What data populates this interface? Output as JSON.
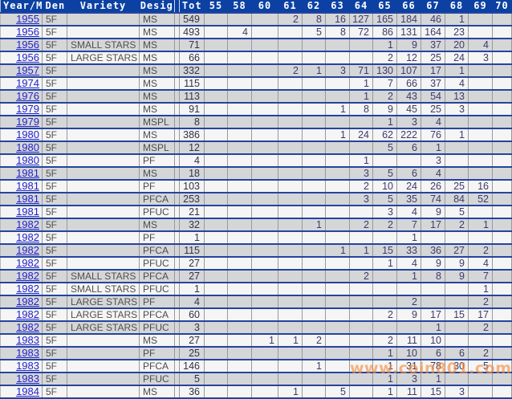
{
  "page": {
    "watermark": "www.coin801.com"
  },
  "colors": {
    "header_bg": "#0c41a3",
    "row_separator": "#24459e",
    "grid_line": "#999999",
    "row_odd_bg": "#d5d6d8",
    "row_even_bg": "#f5f5f5",
    "year_link": "#2323cc",
    "grade_value": "#3f3c66",
    "watermark_color": "#f28938"
  },
  "table": {
    "columns": [
      "Year/M",
      "Den",
      "Variety",
      "Desig",
      "Tot",
      "55",
      "58",
      "60",
      "61",
      "62",
      "63",
      "64",
      "65",
      "66",
      "67",
      "68",
      "69",
      "70"
    ],
    "grade_columns": [
      "55",
      "58",
      "60",
      "61",
      "62",
      "63",
      "64",
      "65",
      "66",
      "67",
      "68",
      "69",
      "70"
    ],
    "rows": [
      {
        "year": "1955",
        "den": "5F",
        "variety": "",
        "desig": "MS",
        "tot": "549",
        "grades": {
          "61": "2",
          "62": "8",
          "63": "16",
          "64": "127",
          "65": "165",
          "66": "184",
          "67": "46",
          "68": "1"
        }
      },
      {
        "year": "1956",
        "den": "5F",
        "variety": "",
        "desig": "MS",
        "tot": "493",
        "grades": {
          "58": "4",
          "62": "5",
          "63": "8",
          "64": "72",
          "65": "86",
          "66": "131",
          "67": "164",
          "68": "23"
        }
      },
      {
        "year": "1956",
        "den": "5F",
        "variety": "SMALL STARS",
        "desig": "MS",
        "tot": "71",
        "grades": {
          "65": "1",
          "66": "9",
          "67": "37",
          "68": "20",
          "69": "4"
        }
      },
      {
        "year": "1956",
        "den": "5F",
        "variety": "LARGE STARS",
        "desig": "MS",
        "tot": "66",
        "grades": {
          "65": "2",
          "66": "12",
          "67": "25",
          "68": "24",
          "69": "3"
        }
      },
      {
        "year": "1957",
        "den": "5F",
        "variety": "",
        "desig": "MS",
        "tot": "332",
        "grades": {
          "61": "2",
          "62": "1",
          "63": "3",
          "64": "71",
          "65": "130",
          "66": "107",
          "67": "17",
          "68": "1"
        }
      },
      {
        "year": "1974",
        "den": "5F",
        "variety": "",
        "desig": "MS",
        "tot": "115",
        "grades": {
          "64": "1",
          "65": "7",
          "66": "66",
          "67": "37",
          "68": "4"
        }
      },
      {
        "year": "1976",
        "den": "5F",
        "variety": "",
        "desig": "MS",
        "tot": "113",
        "grades": {
          "64": "1",
          "65": "2",
          "66": "43",
          "67": "54",
          "68": "13"
        }
      },
      {
        "year": "1979",
        "den": "5F",
        "variety": "",
        "desig": "MS",
        "tot": "91",
        "grades": {
          "63": "1",
          "64": "8",
          "65": "9",
          "66": "45",
          "67": "25",
          "68": "3"
        }
      },
      {
        "year": "1979",
        "den": "5F",
        "variety": "",
        "desig": "MSPL",
        "tot": "8",
        "grades": {
          "65": "1",
          "66": "3",
          "67": "4"
        }
      },
      {
        "year": "1980",
        "den": "5F",
        "variety": "",
        "desig": "MS",
        "tot": "386",
        "grades": {
          "63": "1",
          "64": "24",
          "65": "62",
          "66": "222",
          "67": "76",
          "68": "1"
        }
      },
      {
        "year": "1980",
        "den": "5F",
        "variety": "",
        "desig": "MSPL",
        "tot": "12",
        "grades": {
          "65": "5",
          "66": "6",
          "67": "1"
        }
      },
      {
        "year": "1980",
        "den": "5F",
        "variety": "",
        "desig": "PF",
        "tot": "4",
        "grades": {
          "64": "1",
          "67": "3"
        }
      },
      {
        "year": "1981",
        "den": "5F",
        "variety": "",
        "desig": "MS",
        "tot": "18",
        "grades": {
          "64": "3",
          "65": "5",
          "66": "6",
          "67": "4"
        }
      },
      {
        "year": "1981",
        "den": "5F",
        "variety": "",
        "desig": "PF",
        "tot": "103",
        "grades": {
          "64": "2",
          "65": "10",
          "66": "24",
          "67": "26",
          "68": "25",
          "69": "16"
        }
      },
      {
        "year": "1981",
        "den": "5F",
        "variety": "",
        "desig": "PFCA",
        "tot": "253",
        "grades": {
          "64": "3",
          "65": "5",
          "66": "35",
          "67": "74",
          "68": "84",
          "69": "52"
        }
      },
      {
        "year": "1981",
        "den": "5F",
        "variety": "",
        "desig": "PFUC",
        "tot": "21",
        "grades": {
          "65": "3",
          "66": "4",
          "67": "9",
          "68": "5"
        }
      },
      {
        "year": "1982",
        "den": "5F",
        "variety": "",
        "desig": "MS",
        "tot": "32",
        "grades": {
          "62": "1",
          "64": "2",
          "65": "2",
          "66": "7",
          "67": "17",
          "68": "2",
          "69": "1"
        }
      },
      {
        "year": "1982",
        "den": "5F",
        "variety": "",
        "desig": "PF",
        "tot": "1",
        "grades": {
          "66": "1"
        }
      },
      {
        "year": "1982",
        "den": "5F",
        "variety": "",
        "desig": "PFCA",
        "tot": "115",
        "grades": {
          "63": "1",
          "64": "1",
          "65": "15",
          "66": "33",
          "67": "36",
          "68": "27",
          "69": "2"
        }
      },
      {
        "year": "1982",
        "den": "5F",
        "variety": "",
        "desig": "PFUC",
        "tot": "27",
        "grades": {
          "65": "1",
          "66": "4",
          "67": "9",
          "68": "9",
          "69": "4"
        }
      },
      {
        "year": "1982",
        "den": "5F",
        "variety": "SMALL STARS",
        "desig": "PFCA",
        "tot": "27",
        "grades": {
          "64": "2",
          "66": "1",
          "67": "8",
          "68": "9",
          "69": "7"
        }
      },
      {
        "year": "1982",
        "den": "5F",
        "variety": "SMALL STARS",
        "desig": "PFUC",
        "tot": "1",
        "grades": {
          "69": "1"
        }
      },
      {
        "year": "1982",
        "den": "5F",
        "variety": "LARGE STARS",
        "desig": "PF",
        "tot": "4",
        "grades": {
          "66": "2",
          "69": "2"
        }
      },
      {
        "year": "1982",
        "den": "5F",
        "variety": "LARGE STARS",
        "desig": "PFCA",
        "tot": "60",
        "grades": {
          "65": "2",
          "66": "9",
          "67": "17",
          "68": "15",
          "69": "17"
        }
      },
      {
        "year": "1982",
        "den": "5F",
        "variety": "LARGE STARS",
        "desig": "PFUC",
        "tot": "3",
        "grades": {
          "67": "1",
          "69": "2"
        }
      },
      {
        "year": "1983",
        "den": "5F",
        "variety": "",
        "desig": "MS",
        "tot": "27",
        "grades": {
          "60": "1",
          "61": "1",
          "62": "2",
          "65": "2",
          "66": "11",
          "67": "10"
        }
      },
      {
        "year": "1983",
        "den": "5F",
        "variety": "",
        "desig": "PF",
        "tot": "25",
        "grades": {
          "65": "1",
          "66": "10",
          "67": "6",
          "68": "6",
          "69": "2"
        }
      },
      {
        "year": "1983",
        "den": "5F",
        "variety": "",
        "desig": "PFCA",
        "tot": "146",
        "grades": {
          "62": "1",
          "65": "1",
          "66": "31",
          "67": "78",
          "68": "30",
          "69": "5"
        }
      },
      {
        "year": "1983",
        "den": "5F",
        "variety": "",
        "desig": "PFUC",
        "tot": "5",
        "grades": {
          "65": "1",
          "66": "3",
          "67": "1"
        }
      }
    ],
    "partial_row": {
      "year": "1984",
      "den": "5F",
      "variety": "",
      "desig": "MS",
      "tot": "36",
      "grades": {
        "61": "1",
        "63": "5",
        "65": "1",
        "66": "11",
        "67": "15",
        "68": "3"
      }
    }
  }
}
